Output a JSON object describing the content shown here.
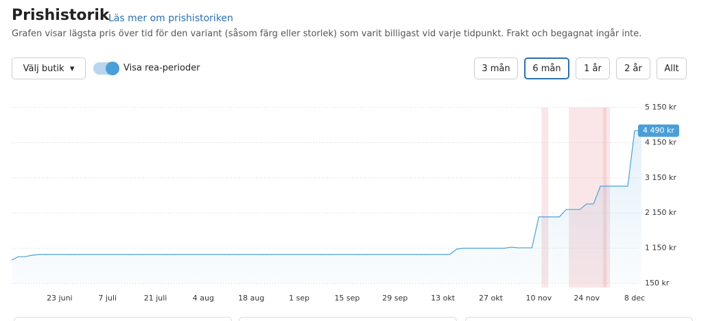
{
  "header": {
    "title": "Prishistorik",
    "link": "Läs mer om prishistoriken",
    "description": "Grafen visar lägsta pris över tid för den variant (såsom färg eller storlek) som varit billigast vid varje tidpunkt. Frakt och begagnat ingår inte."
  },
  "controls": {
    "store_select": "Välj butik",
    "sale_toggle": "Visa rea-perioder",
    "sale_toggle_on": true,
    "ranges": [
      "3 mån",
      "6 mån",
      "1 år",
      "2 år",
      "Allt"
    ],
    "selected_range": "6 mån"
  },
  "chart_data": {
    "type": "line",
    "color": "#4a9fd8",
    "grid": true,
    "categories": [
      null,
      null,
      null,
      null,
      null,
      null,
      null,
      "23 juni",
      null,
      null,
      null,
      null,
      null,
      null,
      "7 juli",
      null,
      null,
      null,
      null,
      null,
      null,
      "21 juli",
      null,
      null,
      null,
      null,
      null,
      null,
      "4 aug",
      null,
      null,
      null,
      null,
      null,
      null,
      "18 aug",
      null,
      null,
      null,
      null,
      null,
      null,
      "1 sep",
      null,
      null,
      null,
      null,
      null,
      null,
      "15 sep",
      null,
      null,
      null,
      null,
      null,
      null,
      "29 sep",
      null,
      null,
      null,
      null,
      null,
      null,
      "13 okt",
      null,
      null,
      null,
      null,
      null,
      null,
      "27 okt",
      null,
      null,
      null,
      null,
      null,
      null,
      "10 nov",
      null,
      null,
      null,
      null,
      null,
      null,
      "24 nov",
      null,
      null,
      null,
      null,
      null,
      null,
      "8 dec",
      null
    ],
    "values": [
      812,
      910,
      910,
      950,
      972,
      972,
      972,
      972,
      972,
      972,
      972,
      972,
      972,
      972,
      972,
      972,
      972,
      972,
      972,
      972,
      972,
      972,
      972,
      972,
      972,
      972,
      972,
      972,
      972,
      972,
      972,
      972,
      972,
      972,
      972,
      972,
      972,
      972,
      972,
      972,
      972,
      972,
      972,
      972,
      972,
      972,
      972,
      972,
      972,
      972,
      972,
      972,
      972,
      972,
      972,
      972,
      972,
      972,
      972,
      972,
      972,
      972,
      972,
      972,
      972,
      1123,
      1150,
      1150,
      1150,
      1150,
      1150,
      1150,
      1150,
      1180,
      1160,
      1160,
      1160,
      2040,
      2040,
      2040,
      2040,
      2250,
      2250,
      2250,
      2408,
      2408,
      2913,
      2913,
      2913,
      2913,
      2913,
      4490,
      4490
    ],
    "ylim": [
      150,
      5150
    ],
    "yticks": [
      {
        "value": 150,
        "label": "150 kr"
      },
      {
        "value": 1150,
        "label": "1 150 kr"
      },
      {
        "value": 2150,
        "label": "2 150 kr"
      },
      {
        "value": 3150,
        "label": "3 150 kr"
      },
      {
        "value": 4150,
        "label": "4 150 kr"
      },
      {
        "value": 5150,
        "label": "5 150 kr"
      }
    ],
    "sale_periods": [
      [
        77,
        78
      ],
      [
        81,
        87
      ],
      [
        86,
        86.5
      ]
    ],
    "current_price": {
      "value": 4490,
      "label": "4 490 kr"
    }
  }
}
